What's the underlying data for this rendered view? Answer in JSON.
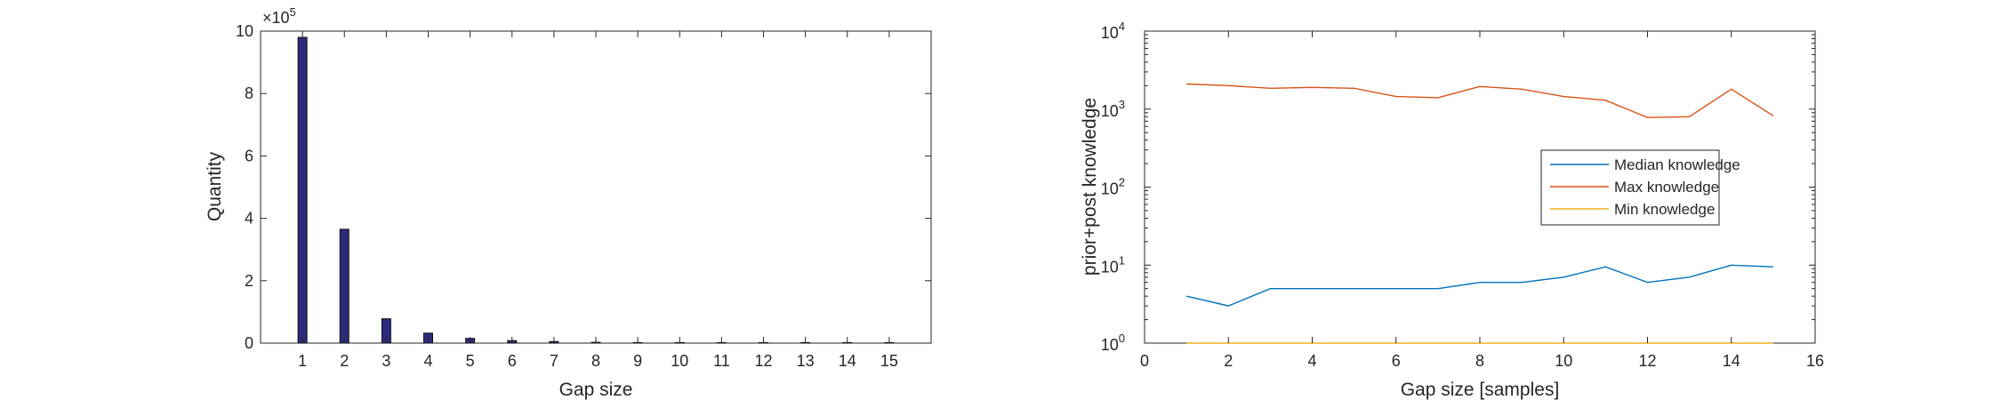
{
  "chart_data": [
    {
      "type": "bar",
      "xlabel": "Gap size",
      "ylabel": "Quantity",
      "exponent_label": "×10",
      "exponent_power": "5",
      "categories": [
        "1",
        "2",
        "3",
        "4",
        "5",
        "6",
        "7",
        "8",
        "9",
        "10",
        "11",
        "12",
        "13",
        "14",
        "15"
      ],
      "values": [
        980000,
        365000,
        78000,
        32000,
        15000,
        8000,
        5000,
        2500,
        1500,
        800,
        500,
        300,
        200,
        100,
        50
      ],
      "xlim": [
        0,
        16
      ],
      "ylim": [
        0,
        1000000
      ],
      "yticks": [
        0,
        200000,
        400000,
        600000,
        800000,
        1000000
      ],
      "ytick_labels": [
        "0",
        "2",
        "4",
        "6",
        "8",
        "10"
      ],
      "bar_color": "#2d2a7e",
      "grid": false
    },
    {
      "type": "line",
      "xlabel": "Gap size [samples]",
      "ylabel": "prior+post knowledge",
      "yscale": "log",
      "x": [
        1,
        2,
        3,
        4,
        5,
        6,
        7,
        8,
        9,
        10,
        11,
        12,
        13,
        14,
        15
      ],
      "xlim": [
        0,
        16
      ],
      "ylim": [
        1,
        10000
      ],
      "xticks": [
        "0",
        "2",
        "4",
        "6",
        "8",
        "10",
        "12",
        "14",
        "16"
      ],
      "ytick_base": "10",
      "ytick_powers": [
        "0",
        "1",
        "2",
        "3",
        "4"
      ],
      "series": [
        {
          "name": "Median knowledge",
          "color": "#0072bd",
          "values": [
            4,
            3,
            5,
            5,
            5,
            5,
            5,
            6,
            6,
            7,
            9.5,
            6,
            7,
            10,
            9.5
          ]
        },
        {
          "name": "Max knowledge",
          "color": "#d95319",
          "values": [
            2100,
            2000,
            1850,
            1900,
            1850,
            1450,
            1400,
            1950,
            1800,
            1450,
            1300,
            780,
            800,
            1800,
            820
          ]
        },
        {
          "name": "Min knowledge",
          "color": "#edb120",
          "values": [
            1,
            1,
            1,
            1,
            1,
            1,
            1,
            1,
            1,
            1,
            1,
            1,
            1,
            1,
            1
          ]
        }
      ],
      "legend_position": "right",
      "grid": false
    }
  ]
}
